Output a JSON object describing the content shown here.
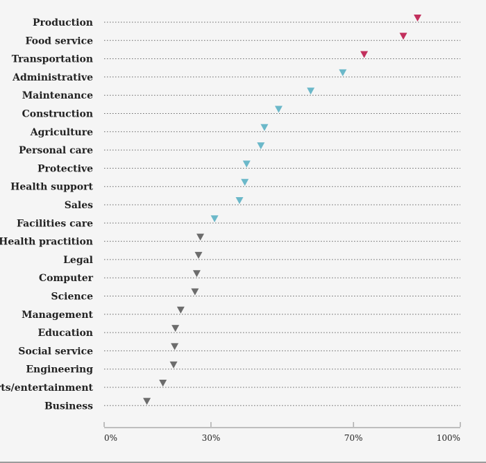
{
  "chart_data": {
    "type": "scatter",
    "marker": "triangle-down",
    "categories": [
      "Production",
      "Food service",
      "Transportation",
      "Administrative",
      "Maintenance",
      "Construction",
      "Agriculture",
      "Personal care",
      "Protective",
      "Health support",
      "Sales",
      "Facilities care",
      "Health practition",
      "Legal",
      "Computer",
      "Science",
      "Management",
      "Education",
      "Social service",
      "Engineering",
      "Arts/entertainment",
      "Business"
    ],
    "values": [
      88,
      84,
      73,
      67,
      58,
      49,
      45,
      44,
      40,
      39.5,
      38,
      31,
      27,
      26.5,
      26,
      25.5,
      21.5,
      20,
      19.8,
      19.5,
      16.5,
      12
    ],
    "groups": [
      "high",
      "high",
      "high",
      "mid",
      "mid",
      "mid",
      "mid",
      "mid",
      "mid",
      "mid",
      "mid",
      "mid",
      "low",
      "low",
      "low",
      "low",
      "low",
      "low",
      "low",
      "low",
      "low",
      "low"
    ],
    "colors": {
      "high": "#c2305d",
      "mid": "#6bb8c9",
      "low": "#6c6c6c"
    },
    "xlim": [
      0,
      100
    ],
    "xticks": [
      0,
      30,
      70,
      100
    ],
    "xtick_labels": [
      "0%",
      "30%",
      "70%",
      "100%"
    ],
    "grid": "dotted guide line per category",
    "title": "",
    "xlabel": "",
    "ylabel": ""
  }
}
